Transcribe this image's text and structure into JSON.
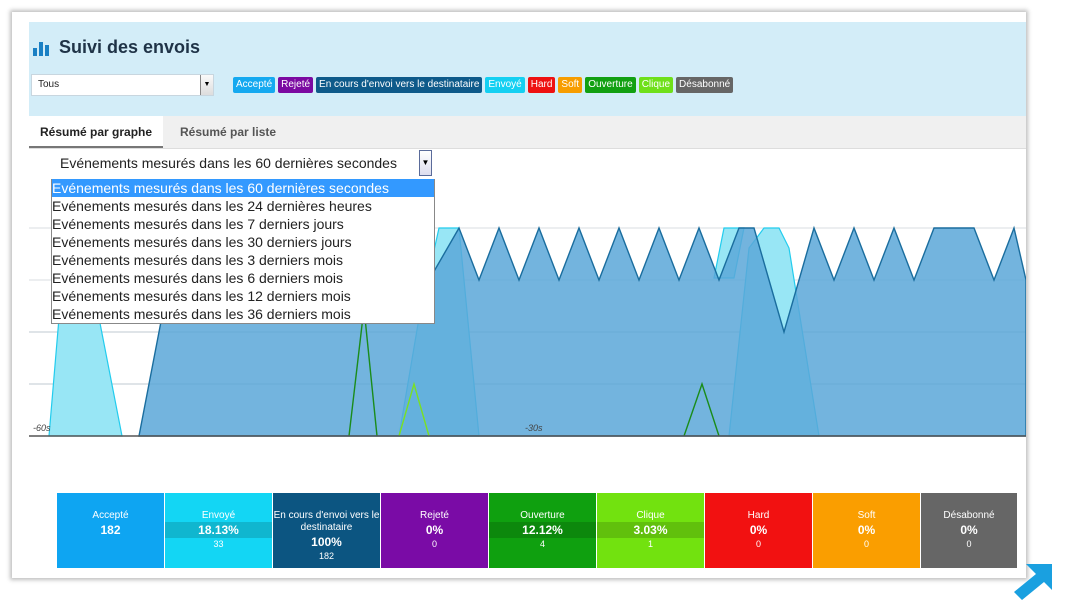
{
  "header": {
    "title": "Suivi des envois",
    "filter_value": "Tous",
    "badges": [
      {
        "label": "Accepté",
        "color": "#15a9f0"
      },
      {
        "label": "Rejeté",
        "color": "#7b0aa1"
      },
      {
        "label": "En cours d'envoi vers le destinataire",
        "color": "#0e5a8a"
      },
      {
        "label": "Envoyé",
        "color": "#14d0f2"
      },
      {
        "label": "Hard",
        "color": "#ee1111"
      },
      {
        "label": "Soft",
        "color": "#f79d00"
      },
      {
        "label": "Ouverture",
        "color": "#12a012"
      },
      {
        "label": "Clique",
        "color": "#6fe01a"
      },
      {
        "label": "Désabonné",
        "color": "#666666"
      }
    ]
  },
  "tabs": [
    {
      "label": "Résumé par graphe",
      "active": true
    },
    {
      "label": "Résumé par liste",
      "active": false
    }
  ],
  "period": {
    "selected": "Evénements mesurés dans les 60 dernières secondes",
    "options": [
      "Evénements mesurés dans les 60 dernières secondes",
      "Evénements mesurés dans les 24 dernières heures",
      "Evénements mesurés dans les 7 derniers jours",
      "Evénements mesurés dans les 30 derniers jours",
      "Evénements mesurés dans les 3 derniers mois",
      "Evénements mesurés dans les 6 derniers mois",
      "Evénements mesurés dans les 12 derniers mois",
      "Evénements mesurés dans les 36 derniers mois"
    ]
  },
  "chart_data": {
    "type": "area",
    "x_ticks": [
      "-60s",
      "-30s"
    ],
    "series": [
      {
        "color": "#4e9ed1"
      },
      {
        "color": "#98e6f5"
      },
      {
        "color": "#1a8c1a"
      },
      {
        "color": "#7ae023"
      }
    ]
  },
  "summary": [
    {
      "label": "Accepté",
      "pct": "182",
      "count": "",
      "color": "#0ea5f2"
    },
    {
      "label": "Envoyé",
      "pct": "18.13%",
      "count": "33",
      "color": "#13d6f4"
    },
    {
      "label": "En cours d'envoi vers le destinataire",
      "pct": "100%",
      "count": "182",
      "color": "#0c5581"
    },
    {
      "label": "Rejeté",
      "pct": "0%",
      "count": "0",
      "color": "#7a0ba6"
    },
    {
      "label": "Ouverture",
      "pct": "12.12%",
      "count": "4",
      "color": "#0fa00f"
    },
    {
      "label": "Clique",
      "pct": "3.03%",
      "count": "1",
      "color": "#72e20f"
    },
    {
      "label": "Hard",
      "pct": "0%",
      "count": "0",
      "color": "#f21111"
    },
    {
      "label": "Soft",
      "pct": "0%",
      "count": "0",
      "color": "#fa9e00"
    },
    {
      "label": "Désabonné",
      "pct": "0%",
      "count": "0",
      "color": "#666666"
    }
  ]
}
